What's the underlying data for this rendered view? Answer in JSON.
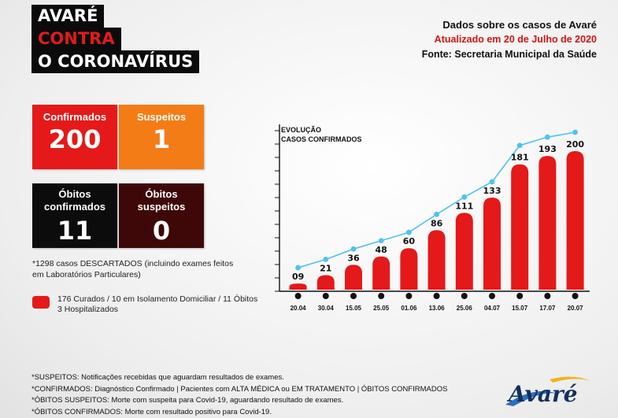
{
  "header": {
    "title_lines": [
      "AVARÉ",
      "CONTRA",
      "O CORONAVÍRUS"
    ]
  },
  "info": {
    "title": "Dados sobre os casos de Avaré",
    "updated": "Atualizado em 20 de Julho de 2020",
    "source": "Fonte: Secretaria Municipal da Saúde"
  },
  "stats": {
    "confirmed": {
      "label": "Confirmados",
      "value": "200",
      "color": "#e51919"
    },
    "suspected": {
      "label": "Suspeitos",
      "value": "1",
      "color": "#f47c16"
    },
    "deaths": {
      "label_line1": "Óbitos",
      "label_line2": "confirmados",
      "value": "11",
      "color": "#0c0c0c"
    },
    "suspected_deaths": {
      "label_line1": "Óbitos",
      "label_line2": "suspeitos",
      "value": "0",
      "color": "#3e0808"
    }
  },
  "discarded": {
    "line1": "*1298 casos DESCARTADOS (incluindo exames feitos",
    "line2": "em Laboratórios Particulares)"
  },
  "legend": {
    "line1": "176 Curados / 10 em Isolamento Domiciliar / 11 Óbitos",
    "line2": "3 Hospitalizados"
  },
  "notes": [
    "*SUSPEITOS: Notificações recebidas que aguardam resultados de exames.",
    "*CONFIRMADOS: Diagnóstico Confirmado | Pacientes com ALTA MÉDICA ou EM TRATAMENTO | ÓBITOS CONFIRMADOS",
    "*ÓBITOS SUSPEITOS: Morte com suspeita para Covid-19, aguardando resultado de exames.",
    "*ÓBITOS CONFIRMADOS: Morte com resultado positivo para Covid-19."
  ],
  "logo": {
    "text": "Avaré"
  },
  "chart_data": {
    "type": "bar",
    "title_line1": "EVOLUÇÃO",
    "title_line2": "CASOS CONFIRMADOS",
    "categories": [
      "20.04",
      "30.04",
      "15.05",
      "25.05",
      "01.06",
      "13.06",
      "25.06",
      "04.07",
      "15.07",
      "17.07",
      "20.07"
    ],
    "values": [
      9,
      21,
      36,
      48,
      60,
      86,
      111,
      133,
      181,
      193,
      200
    ],
    "value_labels": [
      "09",
      "21",
      "36",
      "48",
      "60",
      "86",
      "111",
      "133",
      "181",
      "193",
      "200"
    ],
    "overlay_line": true,
    "ylim": [
      0,
      200
    ],
    "bar_color": "#e51919",
    "line_color": "#4fc3ec"
  }
}
